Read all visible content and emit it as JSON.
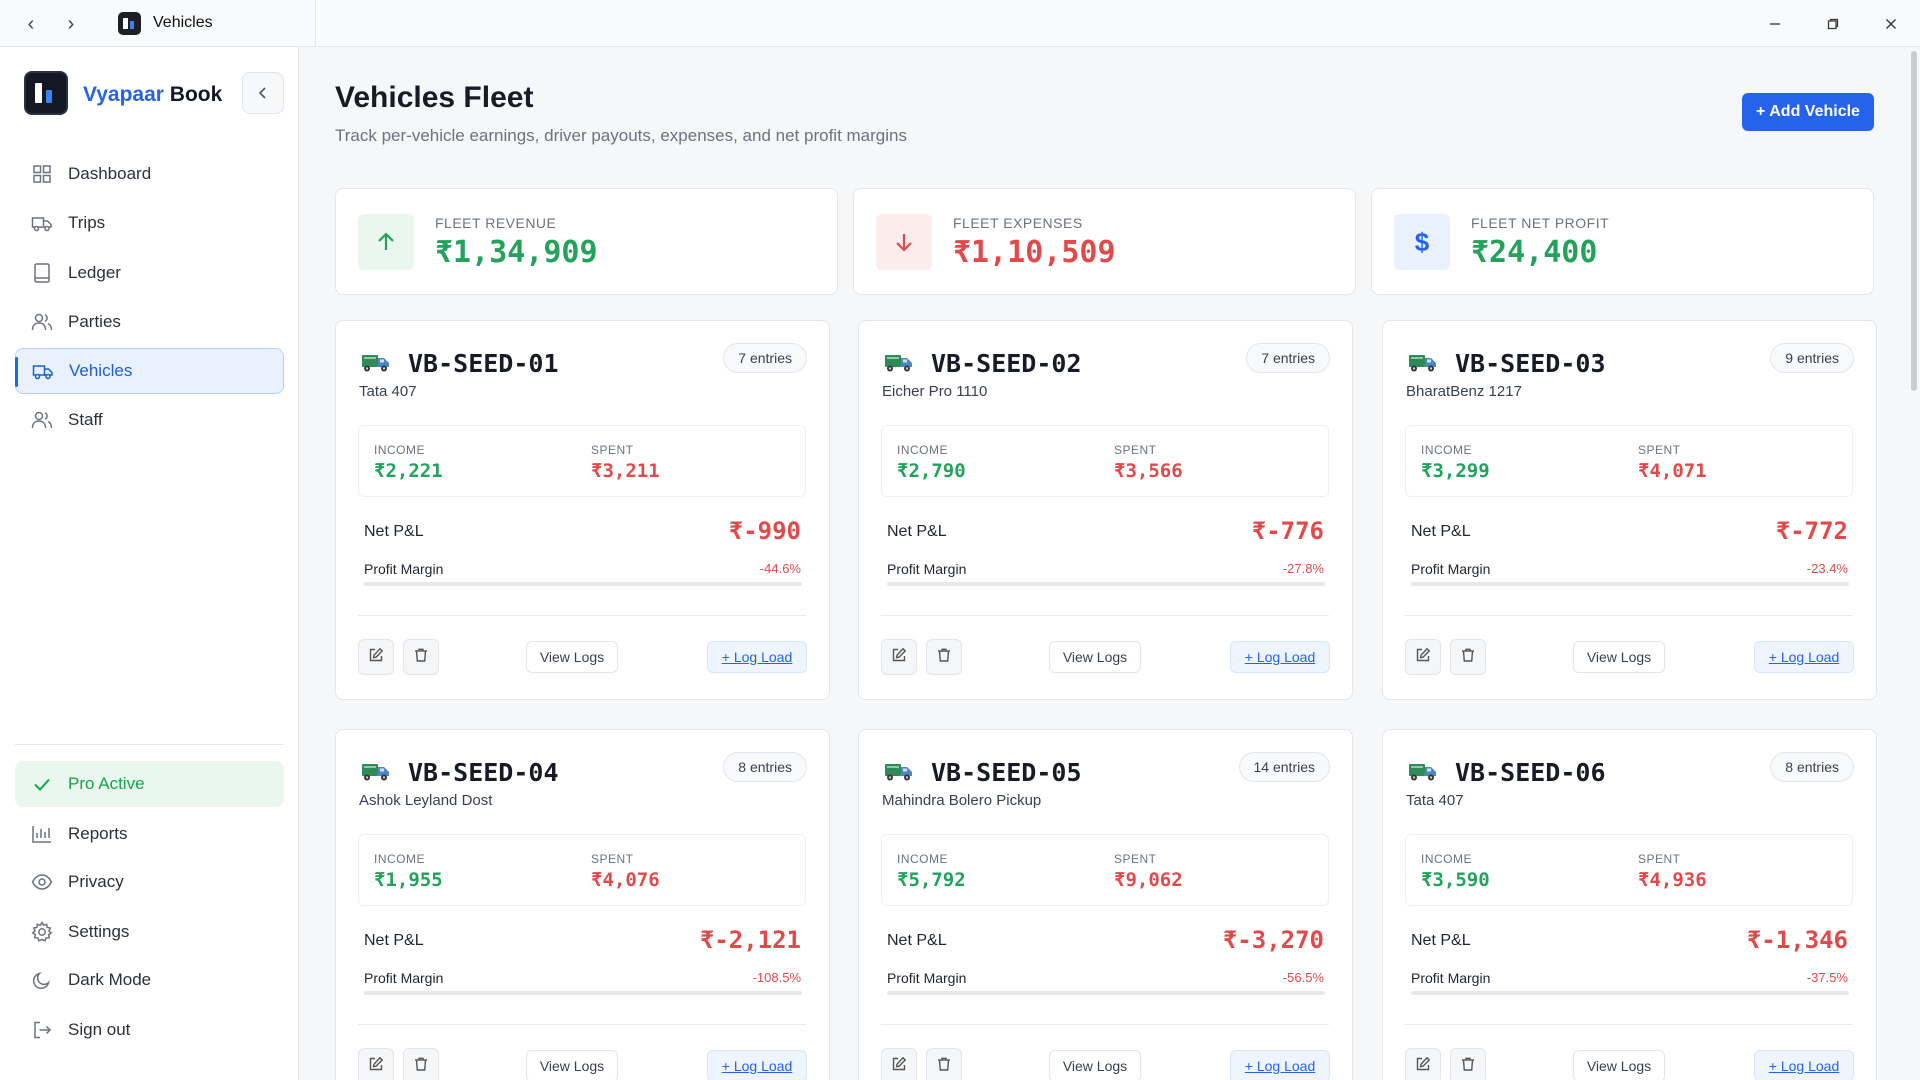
{
  "window": {
    "title": "Vehicles"
  },
  "sidebar": {
    "brand_part1": "Vyapaar",
    "brand_part2": "Book",
    "items": [
      {
        "label": "Dashboard",
        "icon": "grid-icon"
      },
      {
        "label": "Trips",
        "icon": "truck-icon"
      },
      {
        "label": "Ledger",
        "icon": "book-icon"
      },
      {
        "label": "Parties",
        "icon": "users-icon"
      },
      {
        "label": "Vehicles",
        "icon": "truck-icon",
        "active": true
      },
      {
        "label": "Staff",
        "icon": "users-icon"
      }
    ],
    "bottom_items": [
      {
        "label": "Pro Active",
        "icon": "check-icon"
      },
      {
        "label": "Reports",
        "icon": "bar-chart-icon"
      },
      {
        "label": "Privacy",
        "icon": "eye-icon"
      },
      {
        "label": "Settings",
        "icon": "gear-icon"
      },
      {
        "label": "Dark Mode",
        "icon": "moon-icon"
      },
      {
        "label": "Sign out",
        "icon": "logout-icon"
      }
    ]
  },
  "header": {
    "title": "Vehicles Fleet",
    "subtitle": "Track per-vehicle earnings, driver payouts, expenses, and net profit margins",
    "add_button": "+ Add Vehicle"
  },
  "stats": [
    {
      "label": "FLEET REVENUE",
      "value": "₹1,34,909",
      "color": "#22a25a",
      "bg": "#e9f7ee",
      "icon": "arrow-up-icon"
    },
    {
      "label": "FLEET EXPENSES",
      "value": "₹1,10,509",
      "color": "#e14a4a",
      "bg": "#fdecec",
      "icon": "arrow-down-icon"
    },
    {
      "label": "FLEET NET PROFIT",
      "value": "₹24,400",
      "color": "#22a25a",
      "bg": "#e8f1fd",
      "icon": "dollar-icon"
    }
  ],
  "labels": {
    "income": "INCOME",
    "spent": "SPENT",
    "net_pl": "Net P&L",
    "profit_margin": "Profit Margin",
    "view_logs": "View Logs",
    "log_load": "+ Log Load"
  },
  "vehicles": [
    {
      "id": "VB-SEED-01",
      "model": "Tata 407",
      "entries": "7 entries",
      "income": "₹2,221",
      "spent": "₹3,211",
      "net": "₹-990",
      "margin": "-44.6%",
      "margin_value": -44.6
    },
    {
      "id": "VB-SEED-02",
      "model": "Eicher Pro 1110",
      "entries": "7 entries",
      "income": "₹2,790",
      "spent": "₹3,566",
      "net": "₹-776",
      "margin": "-27.8%",
      "margin_value": -27.8
    },
    {
      "id": "VB-SEED-03",
      "model": "BharatBenz 1217",
      "entries": "9 entries",
      "income": "₹3,299",
      "spent": "₹4,071",
      "net": "₹-772",
      "margin": "-23.4%",
      "margin_value": -23.4
    },
    {
      "id": "VB-SEED-04",
      "model": "Ashok Leyland Dost",
      "entries": "8 entries",
      "income": "₹1,955",
      "spent": "₹4,076",
      "net": "₹-2,121",
      "margin": "-108.5%",
      "margin_value": -108.5
    },
    {
      "id": "VB-SEED-05",
      "model": "Mahindra Bolero Pickup",
      "entries": "14 entries",
      "income": "₹5,792",
      "spent": "₹9,062",
      "net": "₹-3,270",
      "margin": "-56.5%",
      "margin_value": -56.5
    },
    {
      "id": "VB-SEED-06",
      "model": "Tata 407",
      "entries": "8 entries",
      "income": "₹3,590",
      "spent": "₹4,936",
      "net": "₹-1,346",
      "margin": "-37.5%",
      "margin_value": -37.5
    }
  ]
}
